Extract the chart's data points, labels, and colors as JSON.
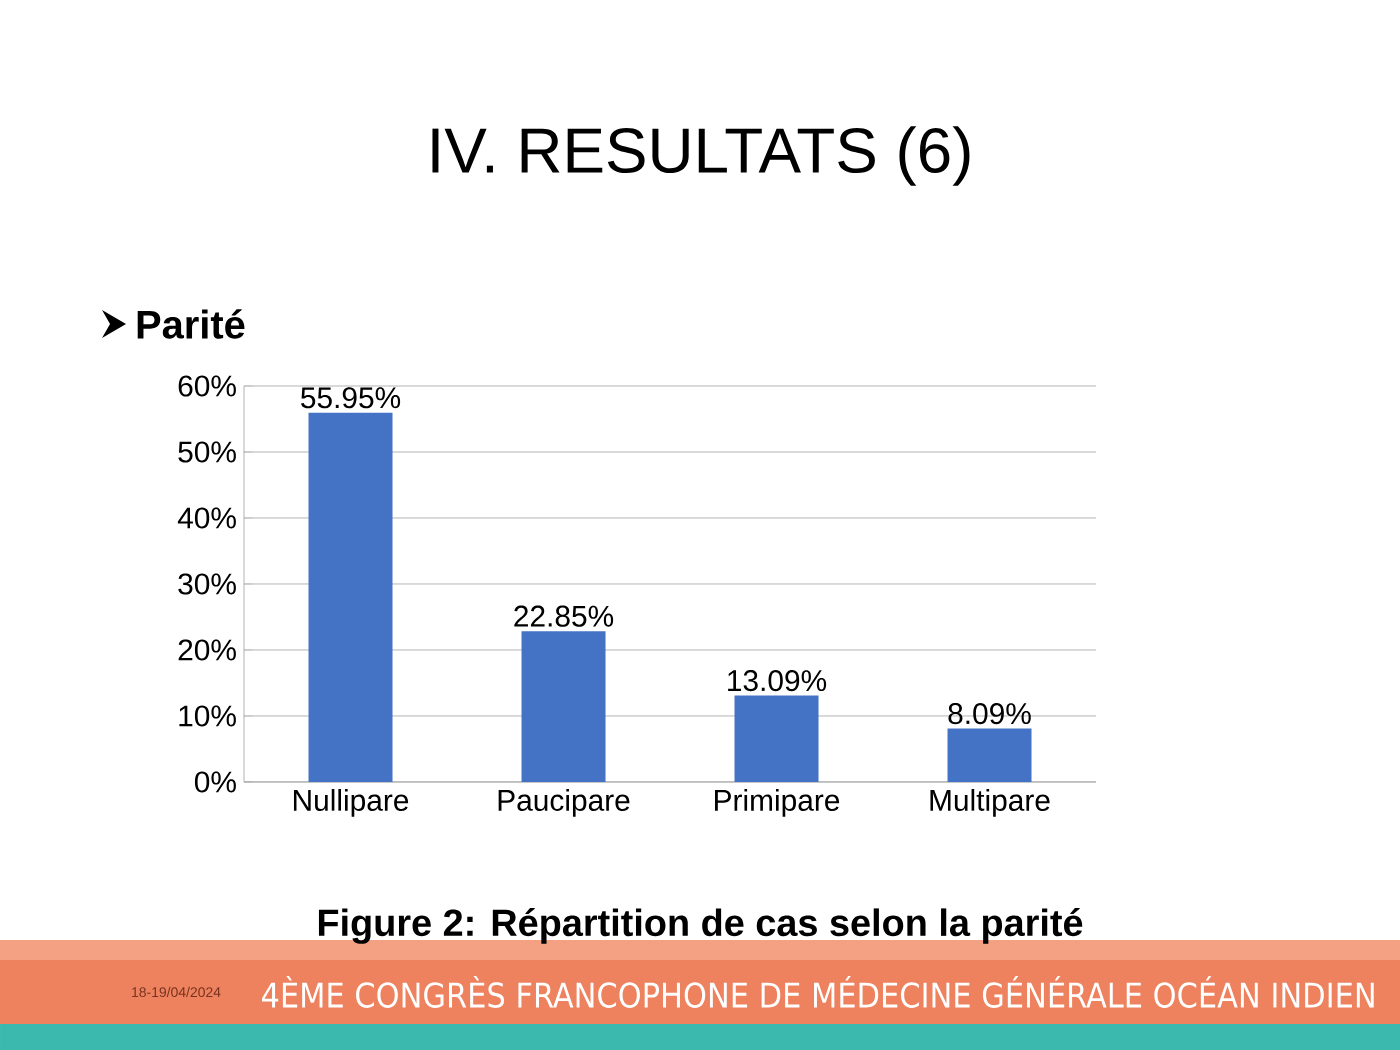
{
  "chart_data": {
    "type": "bar",
    "title": "IV. RESULTATS (6)",
    "subtitle": "Parité",
    "categories": [
      "Nullipare",
      "Paucipare",
      "Primipare",
      "Multipare"
    ],
    "values": [
      55.95,
      22.85,
      13.09,
      8.09
    ],
    "color": "#4472c4",
    "value_labels": [
      "55.95%",
      "22.85%",
      "13.09%",
      "8.09%"
    ],
    "ylim": [
      0,
      60
    ],
    "yticks": [
      {
        "value": 0,
        "label": "0%"
      },
      {
        "value": 10,
        "label": "10%"
      },
      {
        "value": 20,
        "label": "20%"
      },
      {
        "value": 30,
        "label": "30%"
      },
      {
        "value": 40,
        "label": "40%"
      },
      {
        "value": 50,
        "label": "50%"
      },
      {
        "value": 60,
        "label": "60%"
      }
    ],
    "grid": "y",
    "annotations": [
      "Figure 2: Répartition de cas selon la parité",
      "18-19/04/2024",
      "4ÈME CONGRÈS FRANCOPHONE DE MÉDECINE GÉNÉRALE OCÉAN INDIEN"
    ]
  }
}
